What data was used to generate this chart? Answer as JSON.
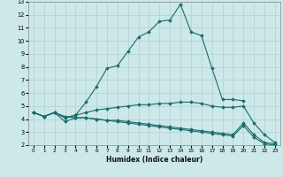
{
  "xlabel": "Humidex (Indice chaleur)",
  "background_color": "#cce8e8",
  "grid_color": "#b0d0d0",
  "line_color": "#1a6b6b",
  "xlim": [
    -0.5,
    23.5
  ],
  "ylim": [
    2,
    13
  ],
  "xticks": [
    0,
    1,
    2,
    3,
    4,
    5,
    6,
    7,
    8,
    9,
    10,
    11,
    12,
    13,
    14,
    15,
    16,
    17,
    18,
    19,
    20,
    21,
    22,
    23
  ],
  "yticks": [
    2,
    3,
    4,
    5,
    6,
    7,
    8,
    9,
    10,
    11,
    12,
    13
  ],
  "line1_x": [
    0,
    1,
    2,
    3,
    4,
    5,
    6,
    7,
    8,
    9,
    10,
    11,
    12,
    13,
    14,
    15,
    16,
    17,
    18,
    19,
    20
  ],
  "line1_y": [
    4.5,
    4.2,
    4.5,
    4.1,
    4.3,
    5.3,
    6.5,
    7.9,
    8.1,
    9.2,
    10.3,
    10.7,
    11.5,
    11.6,
    12.8,
    10.7,
    10.4,
    7.9,
    5.5,
    5.5,
    5.4
  ],
  "line2_x": [
    0,
    1,
    2,
    3,
    4,
    5,
    6,
    7,
    8,
    9,
    10,
    11,
    12,
    13,
    14,
    15,
    16,
    17,
    18,
    19,
    20,
    21,
    22,
    23
  ],
  "line2_y": [
    4.5,
    4.2,
    4.5,
    4.1,
    4.3,
    4.5,
    4.7,
    4.8,
    4.9,
    5.0,
    5.1,
    5.1,
    5.2,
    5.2,
    5.3,
    5.3,
    5.2,
    5.0,
    4.9,
    4.9,
    5.0,
    3.7,
    2.8,
    2.2
  ],
  "line3_x": [
    0,
    1,
    2,
    3,
    4,
    5,
    6,
    7,
    8,
    9,
    10,
    11,
    12,
    13,
    14,
    15,
    16,
    17,
    18,
    19,
    20,
    21,
    22,
    23
  ],
  "line3_y": [
    4.5,
    4.2,
    4.5,
    3.8,
    4.1,
    4.1,
    4.0,
    3.9,
    3.9,
    3.8,
    3.7,
    3.6,
    3.5,
    3.4,
    3.3,
    3.2,
    3.1,
    3.0,
    2.9,
    2.8,
    3.7,
    2.8,
    2.2,
    2.1
  ],
  "line4_x": [
    0,
    1,
    2,
    3,
    4,
    5,
    6,
    7,
    8,
    9,
    10,
    11,
    12,
    13,
    14,
    15,
    16,
    17,
    18,
    19,
    20,
    21,
    22,
    23
  ],
  "line4_y": [
    4.5,
    4.2,
    4.5,
    4.2,
    4.1,
    4.1,
    4.0,
    3.9,
    3.8,
    3.7,
    3.6,
    3.5,
    3.4,
    3.3,
    3.2,
    3.1,
    3.0,
    2.9,
    2.8,
    2.7,
    3.5,
    2.6,
    2.1,
    2.0
  ]
}
